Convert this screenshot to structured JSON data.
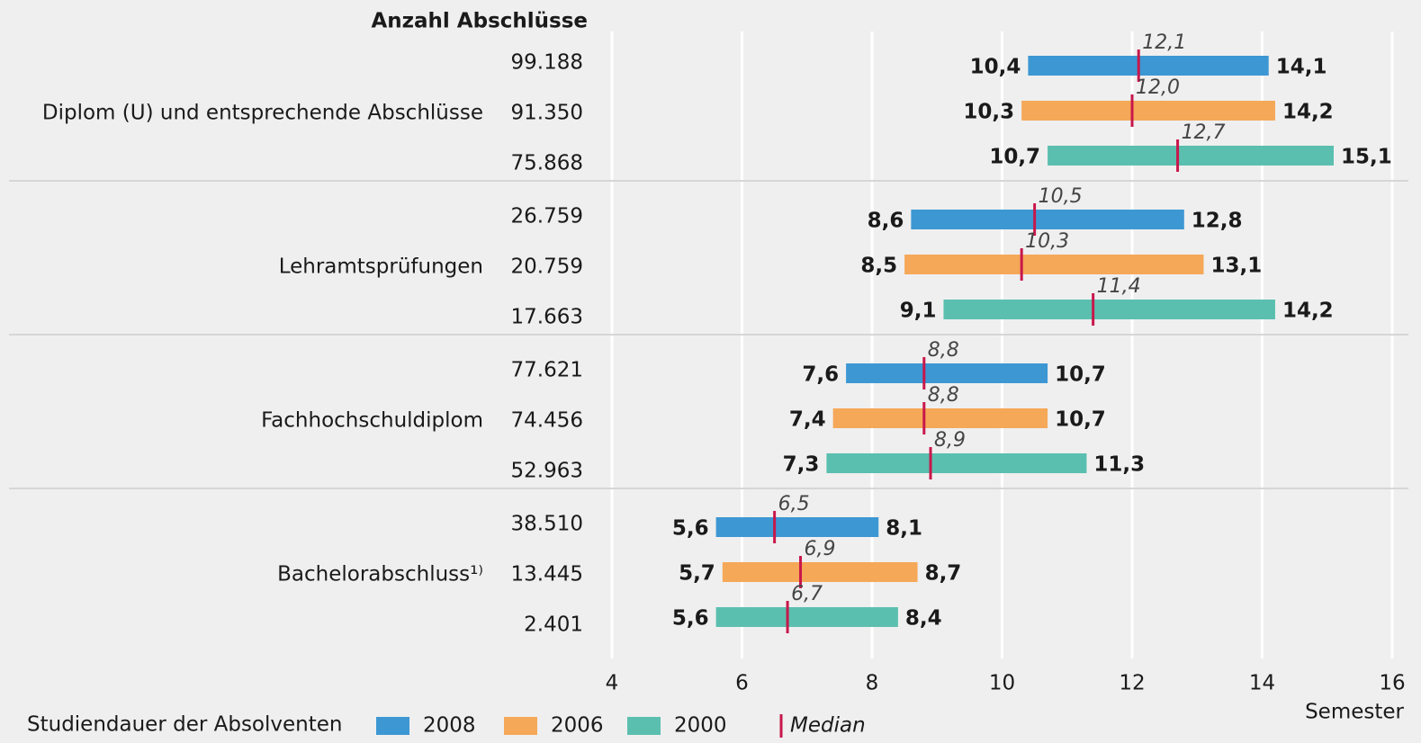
{
  "chart_data": {
    "type": "range",
    "column_header": "Anzahl Abschlüsse",
    "x_label": "Semester",
    "legend_title": "Studiendauer der Absolventen",
    "median_label": "Median",
    "median_color": "#c8174b",
    "grid": true,
    "xlim": [
      4,
      16
    ],
    "xticks": [
      4,
      6,
      8,
      10,
      12,
      14,
      16
    ],
    "categories": [
      "Diplom (U) und entsprechende Abschlüsse",
      "Lehramtsprüfungen",
      "Fachhochschuldiplom",
      "Bachelorabschluss¹⁾"
    ],
    "series": [
      {
        "name": "2008",
        "color": "#3d97d3",
        "counts": [
          "99.188",
          "26.759",
          "77.621",
          "38.510"
        ],
        "low": {
          "values": [
            10.4,
            8.6,
            7.6,
            5.6
          ],
          "value_labels": [
            "10,4",
            "8,6",
            "7,6",
            "5,6"
          ]
        },
        "high": {
          "values": [
            14.1,
            12.8,
            10.7,
            8.1
          ],
          "value_labels": [
            "14,1",
            "12,8",
            "10,7",
            "8,1"
          ]
        },
        "median": {
          "values": [
            12.1,
            10.5,
            8.8,
            6.5
          ],
          "value_labels": [
            "12,1",
            "10,5",
            "8,8",
            "6,5"
          ]
        }
      },
      {
        "name": "2006",
        "color": "#f5a858",
        "counts": [
          "91.350",
          "20.759",
          "74.456",
          "13.445"
        ],
        "low": {
          "values": [
            10.3,
            8.5,
            7.4,
            5.7
          ],
          "value_labels": [
            "10,3",
            "8,5",
            "7,4",
            "5,7"
          ]
        },
        "high": {
          "values": [
            14.2,
            13.1,
            10.7,
            8.7
          ],
          "value_labels": [
            "14,2",
            "13,1",
            "10,7",
            "8,7"
          ]
        },
        "median": {
          "values": [
            12.0,
            10.3,
            8.8,
            6.9
          ],
          "value_labels": [
            "12,0",
            "10,3",
            "8,8",
            "6,9"
          ]
        }
      },
      {
        "name": "2000",
        "color": "#5bbfaf",
        "counts": [
          "75.868",
          "17.663",
          "52.963",
          "2.401"
        ],
        "low": {
          "values": [
            10.7,
            9.1,
            7.3,
            5.6
          ],
          "value_labels": [
            "10,7",
            "9,1",
            "7,3",
            "5,6"
          ]
        },
        "high": {
          "values": [
            15.1,
            14.2,
            11.3,
            8.4
          ],
          "value_labels": [
            "15,1",
            "14,2",
            "11,3",
            "8,4"
          ]
        },
        "median": {
          "values": [
            12.7,
            11.4,
            8.9,
            6.7
          ],
          "value_labels": [
            "12,7",
            "11,4",
            "8,9",
            "6,7"
          ]
        }
      }
    ]
  }
}
